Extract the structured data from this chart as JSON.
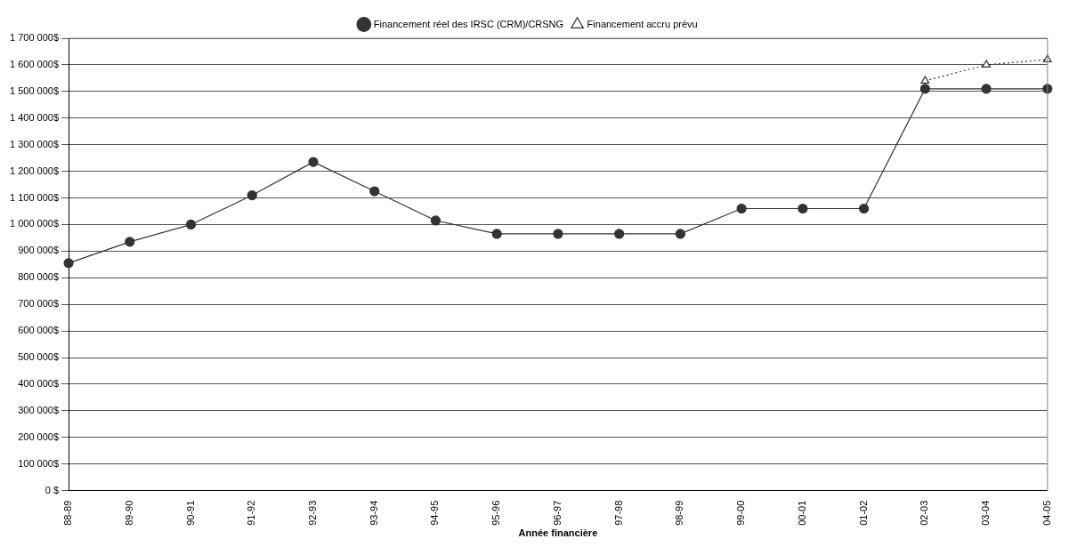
{
  "chart_data": {
    "type": "line",
    "xlabel": "Année financière",
    "categories": [
      "88-89",
      "89-90",
      "90-91",
      "91-92",
      "92-93",
      "93-94",
      "94-95",
      "95-96",
      "96-97",
      "97-98",
      "98-99",
      "99-00",
      "00-01",
      "01-02",
      "02-03",
      "03-04",
      "04-05"
    ],
    "series": [
      {
        "name": "Financement réel des IRSC (CRM)/CRSNG",
        "color": "#333333",
        "marker": "circle",
        "line_style": "solid",
        "values": [
          855000,
          935000,
          1000000,
          1110000,
          1235000,
          1125000,
          1015000,
          965000,
          965000,
          965000,
          965000,
          1060000,
          1060000,
          1060000,
          1510000,
          1510000,
          1510000
        ]
      },
      {
        "name": "Financement accru prévu",
        "color": "#333333",
        "marker": "triangle",
        "line_style": "dotted",
        "values": [
          null,
          null,
          null,
          null,
          null,
          null,
          null,
          null,
          null,
          null,
          null,
          null,
          null,
          null,
          1540000,
          1600000,
          1620000
        ]
      }
    ],
    "ylim": [
      0,
      1700000
    ],
    "yticks": [
      {
        "value": 0,
        "label": "0 $"
      },
      {
        "value": 100000,
        "label": "100 000$"
      },
      {
        "value": 200000,
        "label": "200 000$"
      },
      {
        "value": 300000,
        "label": "300 000$"
      },
      {
        "value": 400000,
        "label": "400 000$"
      },
      {
        "value": 500000,
        "label": "500 000$"
      },
      {
        "value": 600000,
        "label": "600 000$"
      },
      {
        "value": 700000,
        "label": "700 000$"
      },
      {
        "value": 800000,
        "label": "800 000$"
      },
      {
        "value": 900000,
        "label": "900 000$"
      },
      {
        "value": 1000000,
        "label": "1 000 000$"
      },
      {
        "value": 1100000,
        "label": "1 100 000$"
      },
      {
        "value": 1200000,
        "label": "1 200 000$"
      },
      {
        "value": 1300000,
        "label": "1 300 000$"
      },
      {
        "value": 1400000,
        "label": "1 400 000$"
      },
      {
        "value": 1500000,
        "label": "1 500 000$"
      },
      {
        "value": 1600000,
        "label": "1 600 000$"
      },
      {
        "value": 1700000,
        "label": "1 700 000$"
      }
    ],
    "grid": "y",
    "legend": "top"
  }
}
